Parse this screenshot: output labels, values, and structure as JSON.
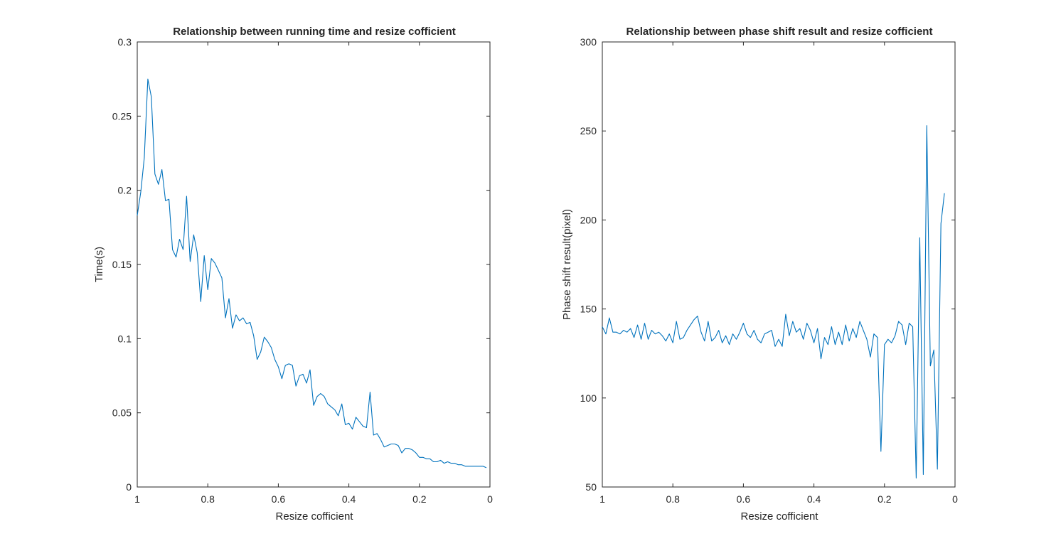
{
  "chart_data": [
    {
      "type": "line",
      "title": "Relationship between running time and resize cofficient",
      "xlabel": "Resize cofficient",
      "ylabel": "Time(s)",
      "xlim": [
        0,
        1
      ],
      "x_reversed": true,
      "ylim": [
        0,
        0.3
      ],
      "xticks": [
        1,
        0.8,
        0.6,
        0.4,
        0.2,
        0
      ],
      "xtick_labels": [
        "1",
        "0.8",
        "0.6",
        "0.4",
        "0.2",
        "0"
      ],
      "yticks": [
        0,
        0.05,
        0.1,
        0.15,
        0.2,
        0.25,
        0.3
      ],
      "ytick_labels": [
        "0",
        "0.05",
        "0.1",
        "0.15",
        "0.2",
        "0.25",
        "0.3"
      ],
      "grid": false,
      "series": [
        {
          "color": "#0072BD",
          "x": [
            1.0,
            0.99,
            0.98,
            0.97,
            0.96,
            0.95,
            0.94,
            0.93,
            0.92,
            0.91,
            0.9,
            0.89,
            0.88,
            0.87,
            0.86,
            0.85,
            0.84,
            0.83,
            0.82,
            0.81,
            0.8,
            0.79,
            0.78,
            0.77,
            0.76,
            0.75,
            0.74,
            0.73,
            0.72,
            0.71,
            0.7,
            0.69,
            0.68,
            0.67,
            0.66,
            0.65,
            0.64,
            0.63,
            0.62,
            0.61,
            0.6,
            0.59,
            0.58,
            0.57,
            0.56,
            0.55,
            0.54,
            0.53,
            0.52,
            0.51,
            0.5,
            0.49,
            0.48,
            0.47,
            0.46,
            0.45,
            0.44,
            0.43,
            0.42,
            0.41,
            0.4,
            0.39,
            0.38,
            0.37,
            0.36,
            0.35,
            0.34,
            0.33,
            0.32,
            0.31,
            0.3,
            0.29,
            0.28,
            0.27,
            0.26,
            0.25,
            0.24,
            0.23,
            0.22,
            0.21,
            0.2,
            0.19,
            0.18,
            0.17,
            0.16,
            0.15,
            0.14,
            0.13,
            0.12,
            0.11,
            0.1,
            0.09,
            0.08,
            0.07,
            0.06,
            0.05,
            0.04,
            0.03,
            0.02,
            0.01
          ],
          "y": [
            0.183,
            0.199,
            0.222,
            0.275,
            0.263,
            0.211,
            0.204,
            0.214,
            0.193,
            0.194,
            0.16,
            0.155,
            0.167,
            0.16,
            0.196,
            0.152,
            0.17,
            0.158,
            0.125,
            0.156,
            0.133,
            0.154,
            0.151,
            0.146,
            0.141,
            0.114,
            0.127,
            0.107,
            0.116,
            0.112,
            0.114,
            0.11,
            0.111,
            0.102,
            0.086,
            0.091,
            0.101,
            0.098,
            0.094,
            0.086,
            0.081,
            0.073,
            0.082,
            0.083,
            0.082,
            0.068,
            0.075,
            0.076,
            0.07,
            0.079,
            0.055,
            0.061,
            0.063,
            0.061,
            0.056,
            0.054,
            0.052,
            0.048,
            0.056,
            0.042,
            0.043,
            0.039,
            0.047,
            0.044,
            0.041,
            0.04,
            0.064,
            0.035,
            0.036,
            0.032,
            0.027,
            0.028,
            0.029,
            0.029,
            0.028,
            0.023,
            0.026,
            0.026,
            0.025,
            0.023,
            0.02,
            0.02,
            0.019,
            0.019,
            0.017,
            0.017,
            0.018,
            0.016,
            0.017,
            0.016,
            0.016,
            0.015,
            0.015,
            0.014,
            0.014,
            0.014,
            0.014,
            0.014,
            0.014,
            0.013
          ]
        }
      ]
    },
    {
      "type": "line",
      "title": "Relationship between phase shift result and resize cofficient",
      "xlabel": "Resize cofficient",
      "ylabel": "Phase shift result(pixel)",
      "xlim": [
        0,
        1
      ],
      "x_reversed": true,
      "ylim": [
        50,
        300
      ],
      "xticks": [
        1,
        0.8,
        0.6,
        0.4,
        0.2,
        0
      ],
      "xtick_labels": [
        "1",
        "0.8",
        "0.6",
        "0.4",
        "0.2",
        "0"
      ],
      "yticks": [
        50,
        100,
        150,
        200,
        250,
        300
      ],
      "ytick_labels": [
        "50",
        "100",
        "150",
        "200",
        "250",
        "300"
      ],
      "grid": false,
      "series": [
        {
          "color": "#0072BD",
          "x": [
            1.0,
            0.99,
            0.98,
            0.97,
            0.96,
            0.95,
            0.94,
            0.93,
            0.92,
            0.91,
            0.9,
            0.89,
            0.88,
            0.87,
            0.86,
            0.85,
            0.84,
            0.83,
            0.82,
            0.81,
            0.8,
            0.79,
            0.78,
            0.77,
            0.76,
            0.75,
            0.74,
            0.73,
            0.72,
            0.71,
            0.7,
            0.69,
            0.68,
            0.67,
            0.66,
            0.65,
            0.64,
            0.63,
            0.62,
            0.61,
            0.6,
            0.59,
            0.58,
            0.57,
            0.56,
            0.55,
            0.54,
            0.53,
            0.52,
            0.51,
            0.5,
            0.49,
            0.48,
            0.47,
            0.46,
            0.45,
            0.44,
            0.43,
            0.42,
            0.41,
            0.4,
            0.39,
            0.38,
            0.37,
            0.36,
            0.35,
            0.34,
            0.33,
            0.32,
            0.31,
            0.3,
            0.29,
            0.28,
            0.27,
            0.26,
            0.25,
            0.24,
            0.23,
            0.22,
            0.21,
            0.2,
            0.19,
            0.18,
            0.17,
            0.16,
            0.15,
            0.14,
            0.13,
            0.12,
            0.11,
            0.1,
            0.09,
            0.08,
            0.07,
            0.06,
            0.05,
            0.04,
            0.03,
            0.02,
            0.01
          ],
          "y": [
            140,
            136,
            145,
            137,
            137,
            136,
            138,
            137,
            139,
            134,
            141,
            133,
            142,
            133,
            138,
            136,
            137,
            135,
            132,
            136,
            131,
            143,
            133,
            134,
            138,
            141,
            144,
            146,
            137,
            132,
            143,
            132,
            134,
            138,
            131,
            135,
            130,
            136,
            133,
            137,
            142,
            136,
            134,
            138,
            133,
            131,
            136,
            137,
            138,
            129,
            133,
            129,
            147,
            135,
            143,
            137,
            139,
            133,
            142,
            138,
            131,
            139,
            122,
            134,
            130,
            140,
            130,
            137,
            130,
            141,
            132,
            139,
            134,
            143,
            138,
            133,
            123,
            136,
            134,
            70,
            130,
            133,
            131,
            135,
            143,
            141,
            130,
            142,
            140,
            55,
            190,
            57,
            253,
            118,
            127,
            60,
            198,
            215,
            null,
            null
          ]
        }
      ]
    }
  ]
}
